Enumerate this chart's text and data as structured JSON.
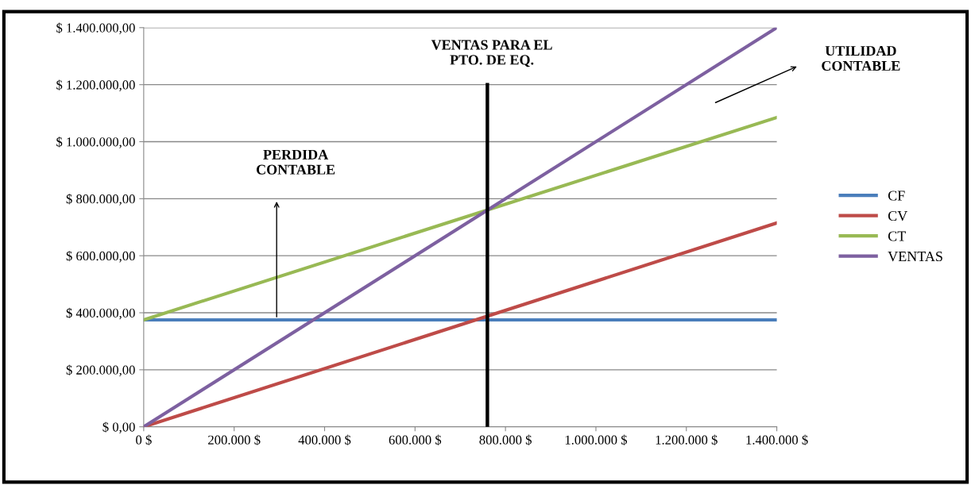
{
  "chart_data": {
    "type": "line",
    "x": [
      0,
      1400000
    ],
    "xlim": [
      0,
      1400000
    ],
    "xticks": [
      {
        "value": 0,
        "label": "0 $"
      },
      {
        "value": 200000,
        "label": "200.000 $"
      },
      {
        "value": 400000,
        "label": "400.000 $"
      },
      {
        "value": 600000,
        "label": "600.000 $"
      },
      {
        "value": 800000,
        "label": "800.000 $"
      },
      {
        "value": 1000000,
        "label": "1.000.000 $"
      },
      {
        "value": 1200000,
        "label": "1.200.000 $"
      },
      {
        "value": 1400000,
        "label": "1.400.000 $"
      }
    ],
    "ylim": [
      0,
      1400000
    ],
    "yticks": [
      {
        "value": 0,
        "label": "$ 0,00"
      },
      {
        "value": 200000,
        "label": "$ 200.000,00"
      },
      {
        "value": 400000,
        "label": "$ 400.000,00"
      },
      {
        "value": 600000,
        "label": "$ 600.000,00"
      },
      {
        "value": 800000,
        "label": "$ 800.000,00"
      },
      {
        "value": 1000000,
        "label": "$ 1.000.000,00"
      },
      {
        "value": 1200000,
        "label": "$ 1.200.000,00"
      },
      {
        "value": 1400000,
        "label": "$ 1.400.000,00"
      }
    ],
    "series": [
      {
        "name": "CF",
        "color": "#4a7ebb",
        "values": [
          375000,
          375000
        ]
      },
      {
        "name": "CV",
        "color": "#be4b48",
        "values": [
          0,
          715000
        ]
      },
      {
        "name": "CT",
        "color": "#98b954",
        "values": [
          375000,
          1085000
        ]
      },
      {
        "name": "VENTAS",
        "color": "#7d60a0",
        "values": [
          0,
          1400000
        ]
      },
      {
        "color": "#000000",
        "x": [
          760000,
          760000
        ],
        "values": [
          0,
          1200000
        ]
      }
    ],
    "annotations": [
      "VENTAS PARA EL\nPTO. DE EQ.",
      "PERDIDA\nCONTABLE",
      "UTILIDAD\nCONTABLE"
    ],
    "grid": "y",
    "legend": "right",
    "marker": "none",
    "line_style": "solid"
  }
}
